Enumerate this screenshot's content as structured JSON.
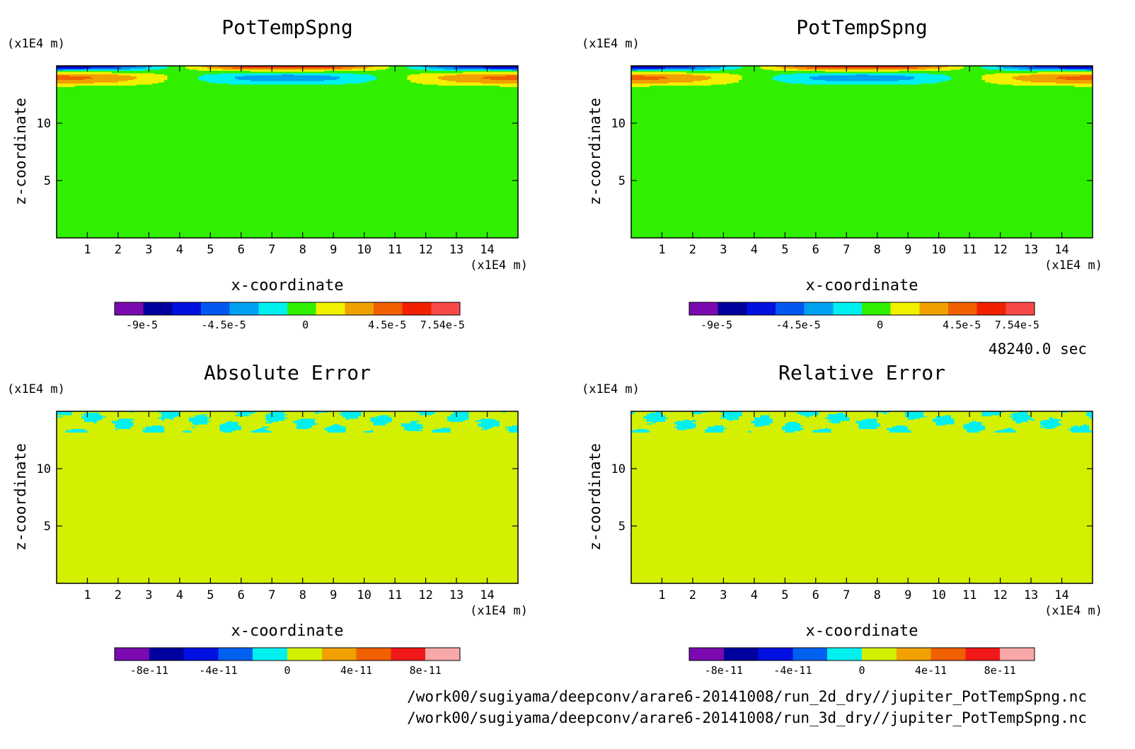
{
  "footer": {
    "time_label": "48240.0 sec",
    "file_2d": "/work00/sugiyama/deepconv/arare6-20141008/run_2d_dry//jupiter_PotTempSpng.nc",
    "file_3d": "/work00/sugiyama/deepconv/arare6-20141008/run_3d_dry//jupiter_PotTempSpng.nc"
  },
  "chart_data": [
    {
      "type": "heatmap",
      "panel": "top-left",
      "title": "PotTempSpng",
      "xlabel": "x-coordinate",
      "ylabel": "z-coordinate",
      "x_unit": "(x1E4 m)",
      "y_unit": "(x1E4 m)",
      "xlim": [
        0,
        15
      ],
      "ylim": [
        0,
        15
      ],
      "x_ticks": [
        1,
        2,
        3,
        4,
        5,
        6,
        7,
        8,
        9,
        10,
        11,
        12,
        13,
        14
      ],
      "y_ticks": [
        5,
        10
      ],
      "field": "sponge",
      "colorbar": {
        "colors": [
          "#7a0ab0",
          "#00009e",
          "#0010e0",
          "#0058f0",
          "#00a0f0",
          "#00f0f0",
          "#30f000",
          "#f0f000",
          "#f0a000",
          "#f06000",
          "#f02000",
          "#f84848"
        ],
        "tick_labels": [
          "-9e-5",
          "-4.5e-5",
          "0",
          "4.5e-5",
          "7.54e-5"
        ],
        "tick_values": [
          -9e-05,
          -4.5e-05,
          0,
          4.5e-05,
          7.54e-05
        ],
        "range": [
          -0.000105,
          8.5e-05
        ]
      }
    },
    {
      "type": "heatmap",
      "panel": "top-right",
      "title": "PotTempSpng",
      "xlabel": "x-coordinate",
      "ylabel": "z-coordinate",
      "x_unit": "(x1E4 m)",
      "y_unit": "(x1E4 m)",
      "xlim": [
        0,
        15
      ],
      "ylim": [
        0,
        15
      ],
      "x_ticks": [
        1,
        2,
        3,
        4,
        5,
        6,
        7,
        8,
        9,
        10,
        11,
        12,
        13,
        14
      ],
      "y_ticks": [
        5,
        10
      ],
      "field": "sponge",
      "colorbar": {
        "colors": [
          "#7a0ab0",
          "#00009e",
          "#0010e0",
          "#0058f0",
          "#00a0f0",
          "#00f0f0",
          "#30f000",
          "#f0f000",
          "#f0a000",
          "#f06000",
          "#f02000",
          "#f84848"
        ],
        "tick_labels": [
          "-9e-5",
          "-4.5e-5",
          "0",
          "4.5e-5",
          "7.54e-5"
        ],
        "tick_values": [
          -9e-05,
          -4.5e-05,
          0,
          4.5e-05,
          7.54e-05
        ],
        "range": [
          -0.000105,
          8.5e-05
        ]
      }
    },
    {
      "type": "heatmap",
      "panel": "bottom-left",
      "title": "Absolute Error",
      "xlabel": "x-coordinate",
      "ylabel": "z-coordinate",
      "x_unit": "(x1E4 m)",
      "y_unit": "(x1E4 m)",
      "xlim": [
        0,
        15
      ],
      "ylim": [
        0,
        15
      ],
      "x_ticks": [
        1,
        2,
        3,
        4,
        5,
        6,
        7,
        8,
        9,
        10,
        11,
        12,
        13,
        14
      ],
      "y_ticks": [
        5,
        10
      ],
      "field": "error",
      "colorbar": {
        "colors": [
          "#7a0ab0",
          "#00009e",
          "#0010e0",
          "#0060f0",
          "#00f0f0",
          "#d2f000",
          "#f0a000",
          "#f06000",
          "#f01818",
          "#f8a8a8"
        ],
        "tick_labels": [
          "-8e-11",
          "-4e-11",
          "0",
          "4e-11",
          "8e-11"
        ],
        "tick_values": [
          -8e-11,
          -4e-11,
          0,
          4e-11,
          8e-11
        ],
        "range": [
          -1e-10,
          1e-10
        ]
      }
    },
    {
      "type": "heatmap",
      "panel": "bottom-right",
      "title": "Relative Error",
      "xlabel": "x-coordinate",
      "ylabel": "z-coordinate",
      "x_unit": "(x1E4 m)",
      "y_unit": "(x1E4 m)",
      "xlim": [
        0,
        15
      ],
      "ylim": [
        0,
        15
      ],
      "x_ticks": [
        1,
        2,
        3,
        4,
        5,
        6,
        7,
        8,
        9,
        10,
        11,
        12,
        13,
        14
      ],
      "y_ticks": [
        5,
        10
      ],
      "field": "error",
      "colorbar": {
        "colors": [
          "#7a0ab0",
          "#00009e",
          "#0010e0",
          "#0060f0",
          "#00f0f0",
          "#d2f000",
          "#f0a000",
          "#f06000",
          "#f01818",
          "#f8a8a8"
        ],
        "tick_labels": [
          "-8e-11",
          "-4e-11",
          "0",
          "4e-11",
          "8e-11"
        ],
        "tick_values": [
          -8e-11,
          -4e-11,
          0,
          4e-11,
          8e-11
        ],
        "range": [
          -1e-10,
          1e-10
        ]
      }
    }
  ]
}
